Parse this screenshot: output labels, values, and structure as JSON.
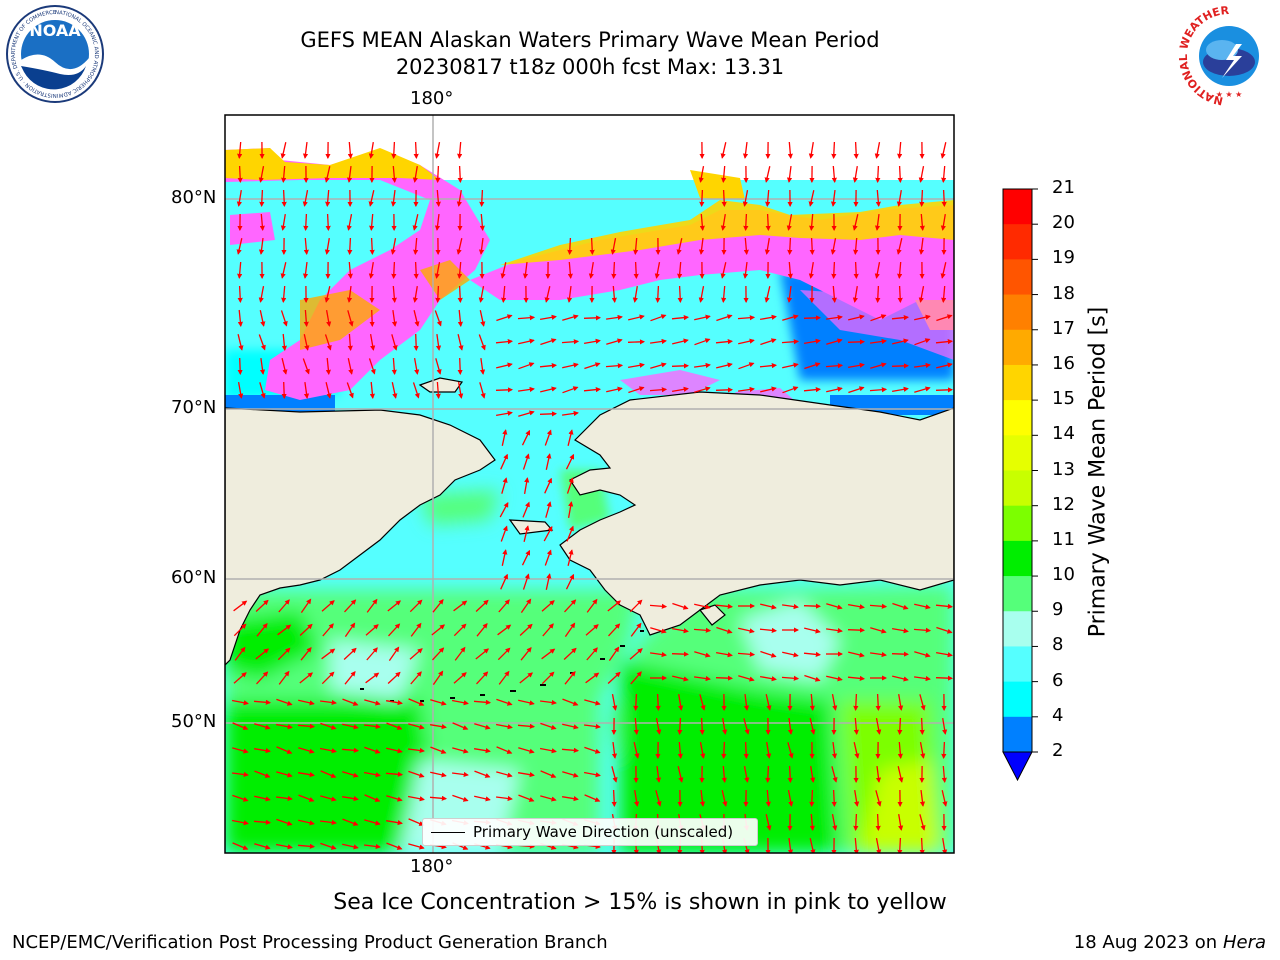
{
  "title_line1": "GEFS MEAN Alaskan Waters Primary Wave Mean Period",
  "title_line2": "20230817 t18z 000h fcst   Max: 13.31",
  "map": {
    "lon_tick_top": "180°",
    "lon_tick_bottom": "180°",
    "lat_ticks": [
      {
        "label": "80°N"
      },
      {
        "label": "70°N"
      },
      {
        "label": "60°N"
      },
      {
        "label": "50°N"
      }
    ],
    "legend_label": "Primary Wave Direction (unscaled)",
    "arrow_color": "#ff0000",
    "land_color": "#efeddd"
  },
  "colorbar": {
    "title": "Primary Wave Mean Period [s]",
    "ticks": [
      "21",
      "20",
      "19",
      "18",
      "17",
      "16",
      "15",
      "14",
      "13",
      "12",
      "11",
      "10",
      "9",
      "8",
      "6",
      "4",
      "2"
    ],
    "colors": [
      "#ff0000",
      "#ff2a00",
      "#ff5500",
      "#ff8000",
      "#ffaa00",
      "#ffd500",
      "#ffff00",
      "#e6ff00",
      "#c8ff00",
      "#7cff00",
      "#00ee00",
      "#55ff7a",
      "#a8ffee",
      "#55ffff",
      "#00ffff",
      "#0080ff"
    ],
    "under_color": "#0000ff"
  },
  "chart_data": {
    "type": "heatmap",
    "title": "GEFS MEAN Alaskan Waters Primary Wave Mean Period",
    "subtitle": "20230817 t18z 000h fcst   Max: 13.31",
    "colorbar_label": "Primary Wave Mean Period [s]",
    "colorbar_range": [
      2,
      21
    ],
    "max_value": 13.31,
    "lat_gridlines": [
      80,
      70,
      60,
      50
    ],
    "lon_gridlines": [
      180
    ],
    "grid": true,
    "legend": "bottom-center",
    "sea_ice_threshold_percent": 15
  },
  "sea_ice_note": "Sea Ice Concentration > 15% is shown in pink to yellow",
  "footer": {
    "left": "NCEP/EMC/Verification Post Processing Product Generation Branch",
    "date": "18 Aug 2023 on",
    "machine": "Hera"
  },
  "logos": {
    "noaa_text": "NOAA",
    "noaa_ring": "NATIONAL OCEANIC AND ATMOSPHERIC ADMINISTRATION · U.S. DEPARTMENT OF COMMERCE ·",
    "nws_ring": "NATIONAL WEATHER SERVICE"
  }
}
